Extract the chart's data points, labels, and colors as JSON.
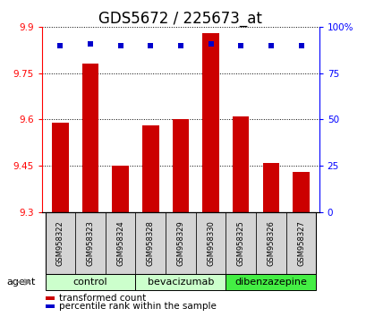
{
  "title": "GDS5672 / 225673_at",
  "samples": [
    "GSM958322",
    "GSM958323",
    "GSM958324",
    "GSM958328",
    "GSM958329",
    "GSM958330",
    "GSM958325",
    "GSM958326",
    "GSM958327"
  ],
  "bar_values": [
    9.59,
    9.78,
    9.45,
    9.58,
    9.6,
    9.88,
    9.61,
    9.46,
    9.43
  ],
  "percentile_values": [
    90,
    91,
    90,
    90,
    90,
    91,
    90,
    90,
    90
  ],
  "ylim_left": [
    9.3,
    9.9
  ],
  "ylim_right": [
    0,
    100
  ],
  "yticks_left": [
    9.3,
    9.45,
    9.6,
    9.75,
    9.9
  ],
  "yticks_right": [
    0,
    25,
    50,
    75,
    100
  ],
  "bar_color": "#cc0000",
  "dot_color": "#0000cc",
  "groups": [
    {
      "label": "control",
      "count": 3,
      "color": "#ccffcc"
    },
    {
      "label": "bevacizumab",
      "count": 3,
      "color": "#ccffcc"
    },
    {
      "label": "dibenzazepine",
      "count": 3,
      "color": "#44ee44"
    }
  ],
  "agent_label": "agent",
  "legend_items": [
    {
      "label": "transformed count",
      "color": "#cc0000"
    },
    {
      "label": "percentile rank within the sample",
      "color": "#0000cc"
    }
  ],
  "title_fontsize": 12,
  "tick_fontsize": 7.5,
  "sample_fontsize": 6,
  "group_fontsize": 8,
  "legend_fontsize": 7.5
}
